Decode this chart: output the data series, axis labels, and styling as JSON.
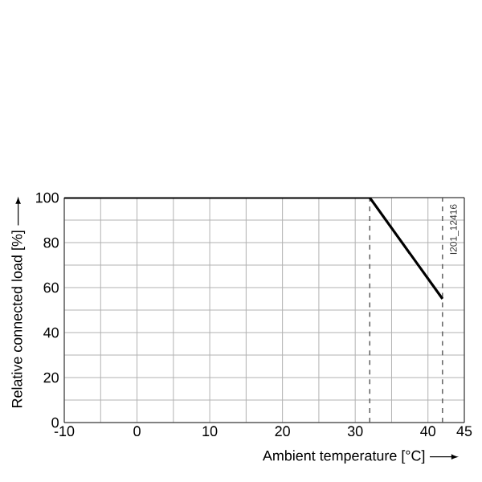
{
  "chart_data": {
    "type": "line",
    "xlabel": "Ambient temperature [°C]",
    "ylabel": "Relative connected load [%]",
    "x": [
      -10,
      32,
      42
    ],
    "series": [
      {
        "color": "#000000",
        "values": [
          100,
          100,
          55
        ]
      }
    ],
    "xlim": [
      -10,
      45
    ],
    "ylim": [
      0,
      100
    ],
    "xticks": [
      -10,
      {
        "value": -5,
        "label": null
      },
      0,
      {
        "value": 5,
        "label": null
      },
      10,
      {
        "value": 15,
        "label": null
      },
      20,
      {
        "value": 25,
        "label": null
      },
      30,
      {
        "value": 35,
        "label": null
      },
      40,
      45
    ],
    "yticks": [
      0,
      {
        "value": 10,
        "label": null
      },
      20,
      {
        "value": 30,
        "label": null
      },
      40,
      {
        "value": 50,
        "label": null
      },
      60,
      {
        "value": 70,
        "label": null
      },
      80,
      {
        "value": 90,
        "label": null
      },
      100
    ],
    "grid": true,
    "legend": false,
    "marker": "none",
    "line_style": "solid",
    "ref_lines": [
      {
        "axis": "x",
        "value": 32,
        "line_style": "dashed",
        "color": "#555555"
      },
      {
        "axis": "x",
        "value": 42,
        "line_style": "dashed",
        "color": "#555555"
      }
    ],
    "annotations": [
      "I201_12416"
    ]
  }
}
